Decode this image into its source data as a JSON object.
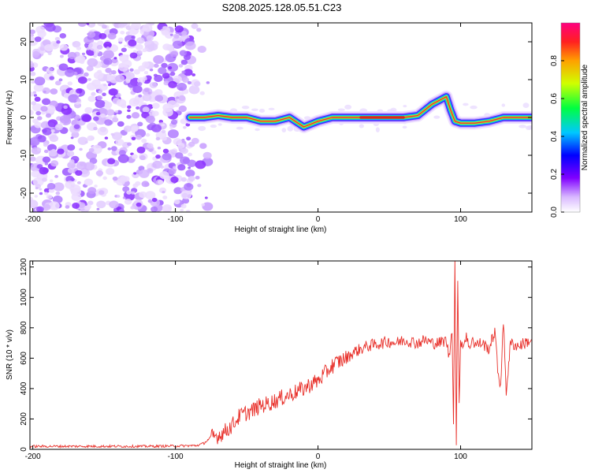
{
  "title": "S208.2025.128.05.51.C23",
  "chart_data": [
    {
      "type": "heatmap",
      "xlabel": "Height of straight line (km)",
      "ylabel": "Frequency (Hz)",
      "xlim": [
        -202,
        150
      ],
      "ylim": [
        -25,
        25
      ],
      "xticks": [
        -200,
        -100,
        0,
        100
      ],
      "yticks": [
        -20,
        -10,
        0,
        10,
        20
      ],
      "colorbar": {
        "label": "Normalized spectral amplitude",
        "range": [
          0,
          1
        ],
        "ticks": [
          0.0,
          0.2,
          0.4,
          0.6,
          0.8
        ]
      },
      "noise_region_x": [
        -202,
        -88
      ],
      "ridge": {
        "x": [
          -90,
          -80,
          -70,
          -60,
          -50,
          -40,
          -30,
          -20,
          -10,
          0,
          10,
          20,
          30,
          40,
          50,
          60,
          70,
          75,
          80,
          85,
          90,
          93,
          96,
          100,
          110,
          120,
          130,
          140,
          150
        ],
        "y": [
          0,
          0,
          0.5,
          0,
          0,
          -1,
          -1,
          0,
          -2.5,
          -1,
          0,
          0,
          0,
          0,
          0,
          0,
          0.5,
          2,
          3.5,
          4.5,
          5.5,
          2,
          -1,
          -1.5,
          -1.5,
          -1,
          0,
          0,
          0
        ]
      }
    },
    {
      "type": "line",
      "xlabel": "Height of straight line (km)",
      "ylabel": "SNR (10 * v/v)",
      "xlim": [
        -202,
        150
      ],
      "ylim": [
        0,
        1240
      ],
      "xticks": [
        -200,
        -100,
        0,
        100
      ],
      "yticks": [
        0,
        200,
        400,
        600,
        800,
        1000,
        1200
      ],
      "color": "#e8302a",
      "series": [
        {
          "x": [
            -202,
            -180,
            -160,
            -140,
            -120,
            -100,
            -85,
            -80,
            -75,
            -70,
            -65,
            -60,
            -55,
            -50,
            -45,
            -40,
            -35,
            -30,
            -25,
            -20,
            -15,
            -10,
            -5,
            0,
            5,
            10,
            15,
            20,
            25,
            30,
            35,
            40,
            45,
            50,
            55,
            60,
            65,
            70,
            75,
            80,
            85,
            90,
            92,
            94,
            95,
            96,
            97,
            98,
            99,
            100,
            102,
            104,
            106,
            108,
            110,
            115,
            120,
            124,
            126,
            128,
            130,
            132,
            135,
            140,
            145,
            150
          ],
          "y": [
            20,
            20,
            20,
            20,
            20,
            22,
            25,
            40,
            80,
            90,
            120,
            160,
            220,
            240,
            260,
            290,
            300,
            320,
            340,
            360,
            380,
            400,
            430,
            450,
            500,
            550,
            580,
            600,
            640,
            660,
            680,
            690,
            700,
            710,
            700,
            720,
            710,
            700,
            720,
            700,
            700,
            720,
            600,
            800,
            200,
            1240,
            60,
            1100,
            300,
            720,
            680,
            760,
            650,
            740,
            690,
            700,
            660,
            780,
            520,
            420,
            840,
            380,
            700,
            680,
            700,
            720
          ]
        }
      ]
    }
  ]
}
